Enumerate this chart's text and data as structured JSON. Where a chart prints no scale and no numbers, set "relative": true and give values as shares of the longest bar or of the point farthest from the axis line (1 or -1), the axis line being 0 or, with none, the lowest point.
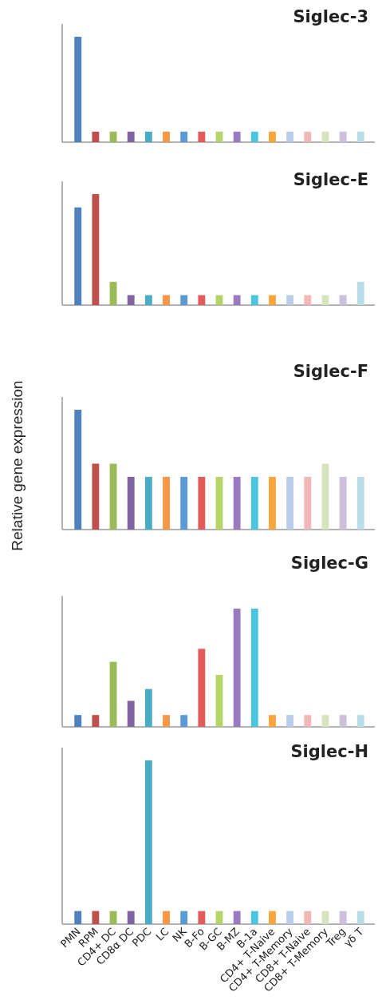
{
  "chart_data": [
    {
      "type": "bar",
      "title": "Siglec-3",
      "relative": true,
      "categories": [
        null,
        null,
        null,
        null,
        null,
        null,
        null,
        null,
        null,
        null,
        null,
        null,
        null,
        null,
        null,
        null,
        null
      ],
      "colors": [
        "#4f81bd",
        "#c0504d",
        "#9bbb59",
        "#8064a2",
        "#4bacc6",
        "#f79646",
        "#5b9bd5",
        "#e55a5a",
        "#b5d56a",
        "#9b7bbf",
        "#4cc6e0",
        "#fba63c",
        "#b9cde8",
        "#f2b8b8",
        "#d7e4bd",
        "#ccc0da",
        "#b7dee8"
      ],
      "values": [
        1,
        0.1,
        0.1,
        0.1,
        0.1,
        0.1,
        0.1,
        0.1,
        0.1,
        0.1,
        0.1,
        0.1,
        0.1,
        0.1,
        0.1,
        0.1,
        0.1
      ]
    },
    {
      "type": "bar",
      "title": "Siglec-E",
      "relative": true,
      "categories": [
        null,
        null,
        null,
        null,
        null,
        null,
        null,
        null,
        null,
        null,
        null,
        null,
        null,
        null,
        null,
        null,
        null
      ],
      "colors": [
        "#4f81bd",
        "#c0504d",
        "#9bbb59",
        "#8064a2",
        "#4bacc6",
        "#f79646",
        "#5b9bd5",
        "#e55a5a",
        "#b5d56a",
        "#9b7bbf",
        "#4cc6e0",
        "#fba63c",
        "#b9cde8",
        "#f2b8b8",
        "#d7e4bd",
        "#ccc0da",
        "#b7dee8"
      ],
      "values": [
        0.88,
        1,
        0.21,
        0.09,
        0.09,
        0.09,
        0.09,
        0.09,
        0.09,
        0.09,
        0.09,
        0.09,
        0.09,
        0.09,
        0.09,
        0.09,
        0.21
      ]
    },
    {
      "type": "bar",
      "title": "Siglec-F",
      "ylabel": "Relative gene expression",
      "relative": true,
      "categories": [
        null,
        null,
        null,
        null,
        null,
        null,
        null,
        null,
        null,
        null,
        null,
        null,
        null,
        null,
        null,
        null,
        null
      ],
      "colors": [
        "#4f81bd",
        "#c0504d",
        "#9bbb59",
        "#8064a2",
        "#4bacc6",
        "#f79646",
        "#5b9bd5",
        "#e55a5a",
        "#b5d56a",
        "#9b7bbf",
        "#4cc6e0",
        "#fba63c",
        "#b9cde8",
        "#f2b8b8",
        "#d7e4bd",
        "#ccc0da",
        "#b7dee8"
      ],
      "values": [
        1,
        0.55,
        0.55,
        0.44,
        0.44,
        0.44,
        0.44,
        0.44,
        0.44,
        0.44,
        0.44,
        0.44,
        0.44,
        0.44,
        0.55,
        0.44,
        0.44
      ]
    },
    {
      "type": "bar",
      "title": "Siglec-G",
      "relative": true,
      "categories": [
        null,
        null,
        null,
        null,
        null,
        null,
        null,
        null,
        null,
        null,
        null,
        null,
        null,
        null,
        null,
        null,
        null
      ],
      "colors": [
        "#4f81bd",
        "#c0504d",
        "#9bbb59",
        "#8064a2",
        "#4bacc6",
        "#f79646",
        "#5b9bd5",
        "#e55a5a",
        "#b5d56a",
        "#9b7bbf",
        "#4cc6e0",
        "#fba63c",
        "#b9cde8",
        "#f2b8b8",
        "#d7e4bd",
        "#ccc0da",
        "#b7dee8"
      ],
      "values": [
        0.1,
        0.1,
        0.55,
        0.22,
        0.32,
        0.1,
        0.1,
        0.66,
        0.44,
        1,
        1,
        0.1,
        0.1,
        0.1,
        0.1,
        0.1,
        0.1
      ]
    },
    {
      "type": "bar",
      "title": "Siglec-H",
      "relative": true,
      "categories": [
        "PMN",
        "RPM",
        "CD4+ DC",
        "CD8α DC",
        "PDC",
        "LC",
        "NK",
        "B-Fo",
        "B-GC",
        "B-MZ",
        "B-1a",
        "CD4+ T-Naive",
        "CD4+ T-Memory",
        "CD8+ T-Naive",
        "CD8+ T-Memory",
        "Treg",
        "γδ T"
      ],
      "colors": [
        "#4f81bd",
        "#c0504d",
        "#9bbb59",
        "#8064a2",
        "#4bacc6",
        "#f79646",
        "#5b9bd5",
        "#e55a5a",
        "#b5d56a",
        "#9b7bbf",
        "#4cc6e0",
        "#fba63c",
        "#b9cde8",
        "#f2b8b8",
        "#d7e4bd",
        "#ccc0da",
        "#b7dee8"
      ],
      "values": [
        0.08,
        0.08,
        0.08,
        0.08,
        1,
        0.08,
        0.08,
        0.08,
        0.08,
        0.08,
        0.08,
        0.08,
        0.08,
        0.08,
        0.08,
        0.08,
        0.08
      ]
    }
  ]
}
